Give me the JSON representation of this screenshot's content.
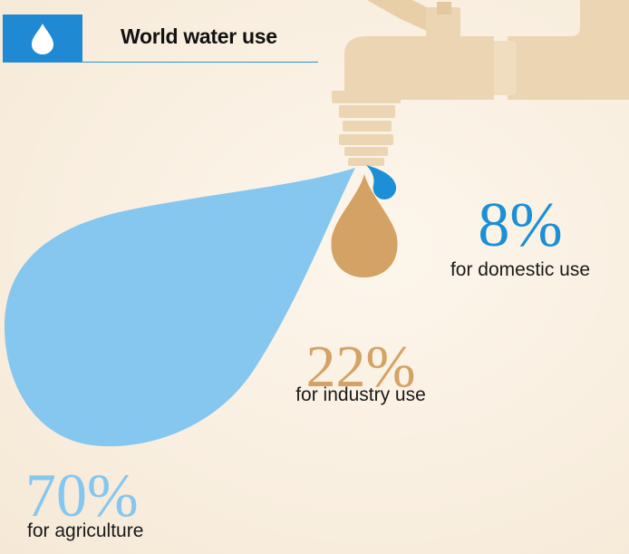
{
  "header": {
    "title": "World water use",
    "icon": "water-drop-icon"
  },
  "colors": {
    "header_blue": "#1f8ad3",
    "domestic": "#1d8fd6",
    "industry": "#d4a264",
    "agriculture": "#86c7ef",
    "tap": "#ecd5b2"
  },
  "stats": {
    "domestic": {
      "value": "8",
      "unit": "%",
      "label": "for domestic use"
    },
    "industry": {
      "value": "22",
      "unit": "%",
      "label": "for industry use"
    },
    "agriculture": {
      "value": "70",
      "unit": "%",
      "label": "for agriculture"
    }
  }
}
